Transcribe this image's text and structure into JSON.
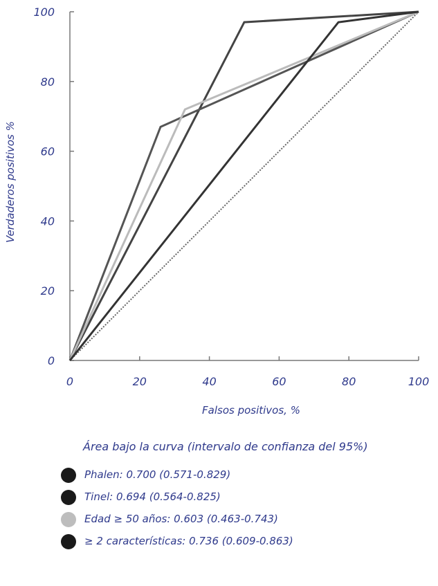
{
  "chart_data": {
    "type": "line",
    "xlabel": "Falsos positivos, %",
    "ylabel": "Verdaderos positivos %",
    "xlim": [
      0,
      100
    ],
    "ylim": [
      0,
      100
    ],
    "x_ticks": [
      "0",
      "20",
      "40",
      "60",
      "80",
      "100"
    ],
    "y_ticks": [
      "0",
      "20",
      "40",
      "60",
      "80",
      "100"
    ],
    "grid": false,
    "reference_line": {
      "points": [
        [
          0,
          0
        ],
        [
          100,
          100
        ]
      ],
      "style": "dotted",
      "color": "#666666"
    },
    "series": [
      {
        "color": "#444444",
        "points": [
          [
            0,
            0
          ],
          [
            50,
            97
          ],
          [
            100,
            100
          ]
        ]
      },
      {
        "color": "#555555",
        "points": [
          [
            0,
            0
          ],
          [
            26,
            67
          ],
          [
            100,
            100
          ]
        ]
      },
      {
        "color": "#bbbbbb",
        "points": [
          [
            0,
            0
          ],
          [
            33,
            72
          ],
          [
            100,
            100
          ]
        ]
      },
      {
        "color": "#333333",
        "points": [
          [
            0,
            0
          ],
          [
            77,
            97
          ],
          [
            100,
            100
          ]
        ]
      }
    ],
    "legend_title": "Área bajo la curva (intervalo de confianza del 95%)",
    "legend": [
      {
        "label": "Phalen: 0.700 (0.571-0.829)",
        "color": "#1a1a1a"
      },
      {
        "label": "Tinel: 0.694 (0.564-0.825)",
        "color": "#1a1a1a"
      },
      {
        "label": "Edad ≥ 50 años: 0.603 (0.463-0.743)",
        "color": "#bdbdbd"
      },
      {
        "label": "≥ 2 características: 0.736 (0.609-0.863)",
        "color": "#1a1a1a"
      }
    ]
  }
}
